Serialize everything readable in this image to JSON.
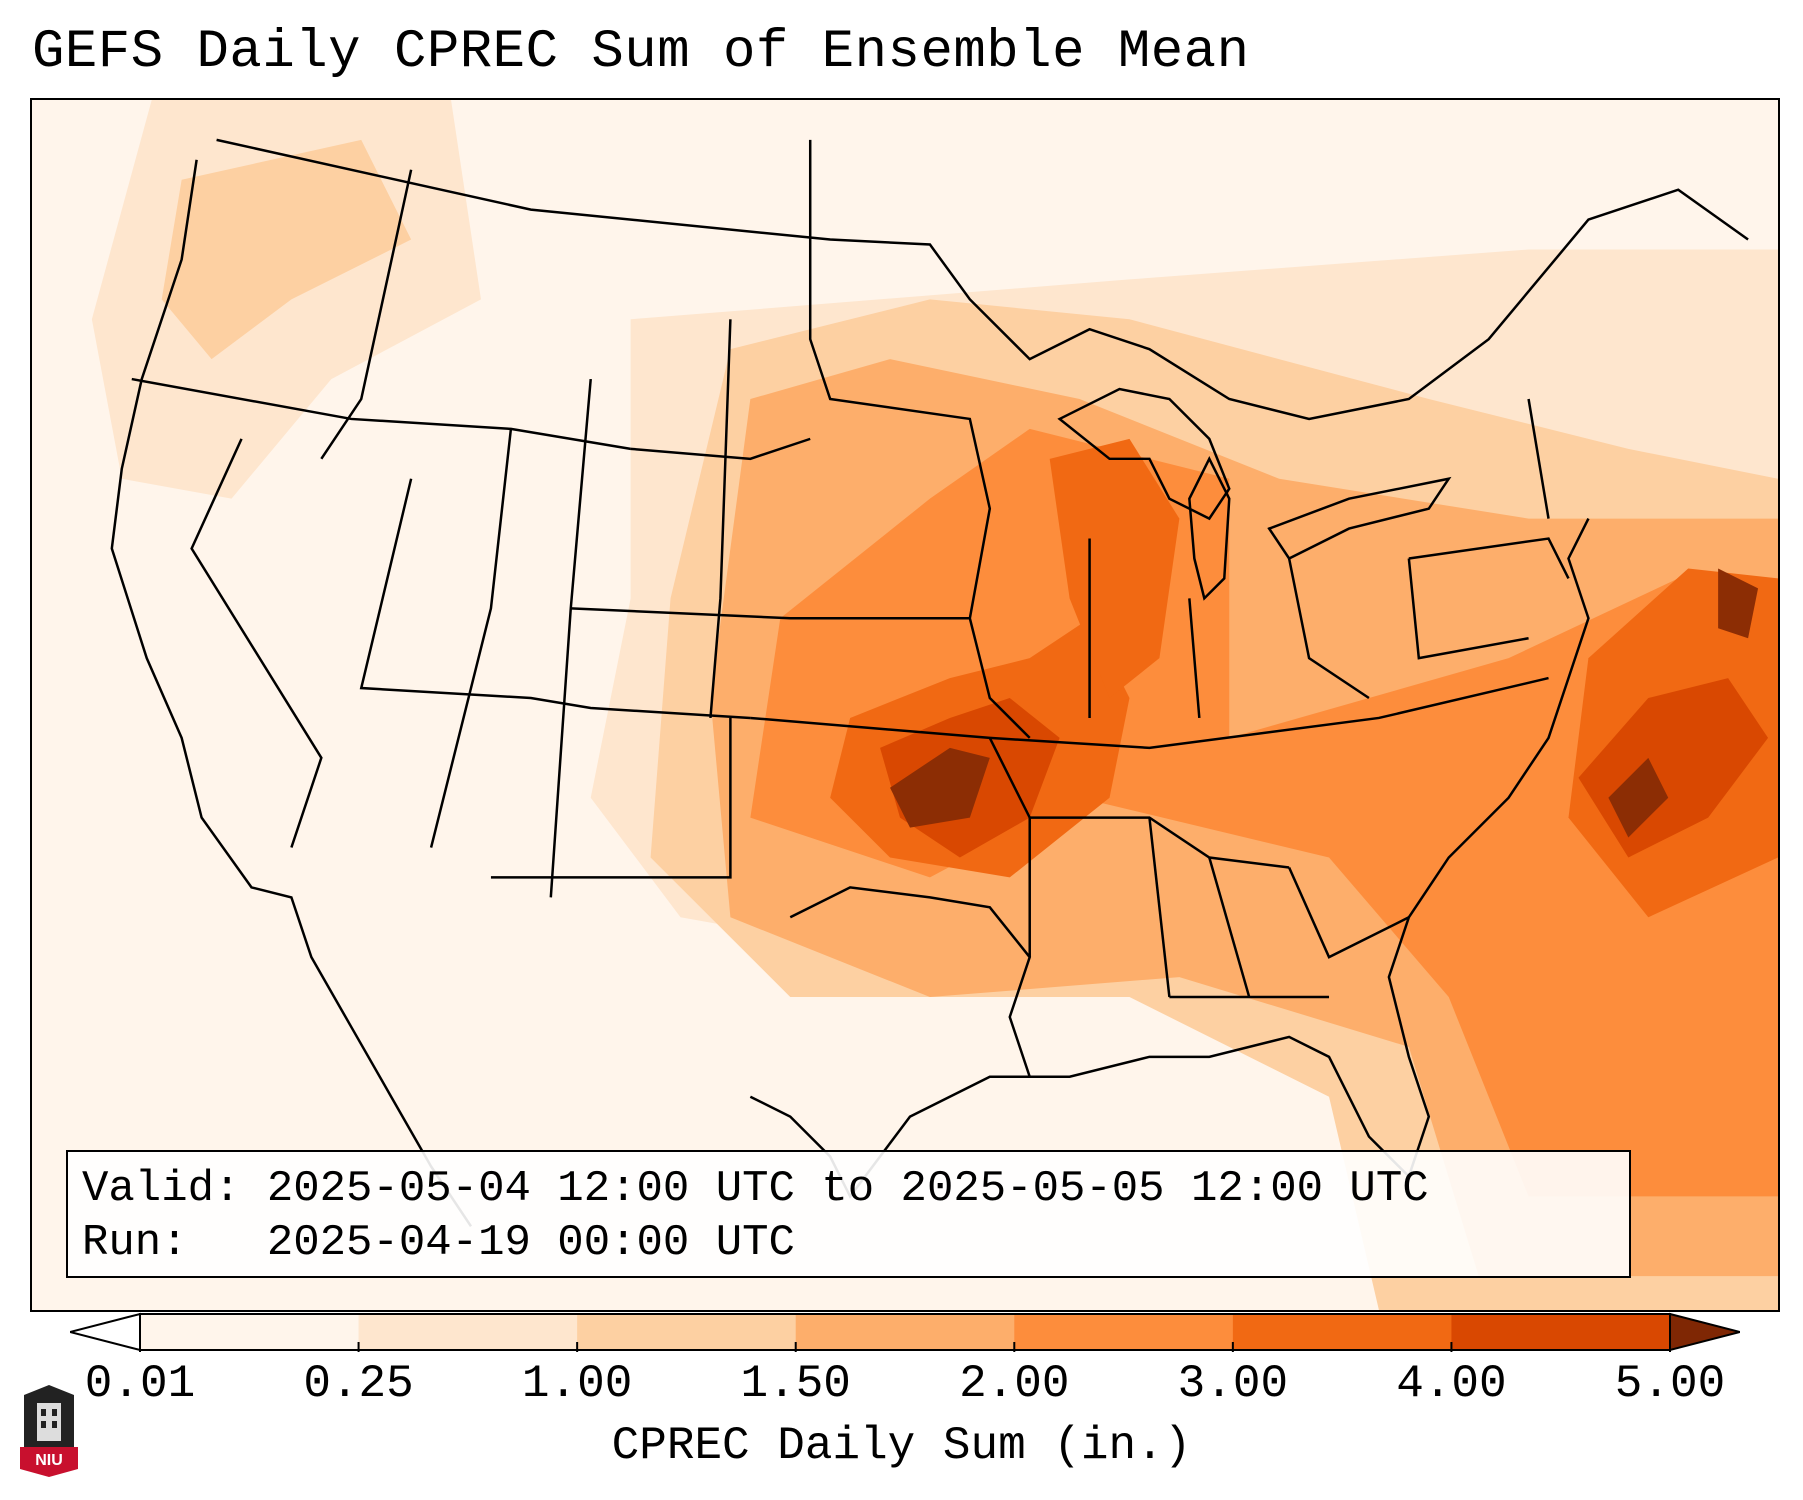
{
  "title": "GEFS Daily CPREC Sum of Ensemble Mean",
  "valid_box": {
    "valid_label": "Valid:",
    "valid_value": "2025-05-04 12:00 UTC to 2025-05-05 12:00 UTC",
    "run_label": "Run:",
    "run_value": "2025-04-19 00:00 UTC"
  },
  "colorbar": {
    "label": "CPREC Daily Sum (in.)",
    "ticks": [
      "0.01",
      "0.25",
      "1.00",
      "1.50",
      "2.00",
      "3.00",
      "4.00",
      "5.00"
    ],
    "colors": [
      "#fff5eb",
      "#fee6ce",
      "#fdd0a2",
      "#fdae6b",
      "#fd8d3c",
      "#f16913",
      "#d94801",
      "#8c2d04"
    ],
    "under_color": "#ffffff",
    "over_color": "#7f2704"
  },
  "logo": {
    "text": "NIU",
    "color": "#c8102e"
  },
  "precip_regions": [
    {
      "level": 0,
      "points": [
        [
          0,
          0
        ],
        [
          1750,
          0
        ],
        [
          1750,
          1214
        ],
        [
          0,
          1214
        ]
      ]
    },
    {
      "level": 1,
      "points": [
        [
          120,
          0
        ],
        [
          420,
          0
        ],
        [
          450,
          200
        ],
        [
          300,
          280
        ],
        [
          200,
          400
        ],
        [
          90,
          380
        ],
        [
          60,
          220
        ]
      ]
    },
    {
      "level": 1,
      "points": [
        [
          600,
          220
        ],
        [
          1100,
          180
        ],
        [
          1500,
          150
        ],
        [
          1750,
          150
        ],
        [
          1750,
          700
        ],
        [
          1400,
          900
        ],
        [
          1100,
          900
        ],
        [
          650,
          820
        ],
        [
          560,
          700
        ],
        [
          600,
          500
        ]
      ]
    },
    {
      "level": 2,
      "points": [
        [
          150,
          80
        ],
        [
          330,
          40
        ],
        [
          380,
          140
        ],
        [
          260,
          200
        ],
        [
          180,
          260
        ],
        [
          130,
          200
        ]
      ]
    },
    {
      "level": 2,
      "points": [
        [
          700,
          250
        ],
        [
          900,
          200
        ],
        [
          1100,
          220
        ],
        [
          1400,
          300
        ],
        [
          1600,
          350
        ],
        [
          1750,
          380
        ],
        [
          1750,
          1214
        ],
        [
          1350,
          1214
        ],
        [
          1300,
          1000
        ],
        [
          1100,
          900
        ],
        [
          760,
          900
        ],
        [
          620,
          760
        ],
        [
          640,
          500
        ]
      ]
    },
    {
      "level": 3,
      "points": [
        [
          720,
          300
        ],
        [
          860,
          260
        ],
        [
          1050,
          300
        ],
        [
          1250,
          380
        ],
        [
          1500,
          420
        ],
        [
          1750,
          420
        ],
        [
          1750,
          1180
        ],
        [
          1450,
          1180
        ],
        [
          1380,
          950
        ],
        [
          1150,
          880
        ],
        [
          900,
          900
        ],
        [
          700,
          820
        ],
        [
          680,
          600
        ]
      ]
    },
    {
      "level": 4,
      "points": [
        [
          750,
          520
        ],
        [
          900,
          400
        ],
        [
          1000,
          330
        ],
        [
          1200,
          380
        ],
        [
          1200,
          640
        ],
        [
          1480,
          560
        ],
        [
          1650,
          480
        ],
        [
          1750,
          500
        ],
        [
          1750,
          1100
        ],
        [
          1500,
          1100
        ],
        [
          1420,
          900
        ],
        [
          1300,
          760
        ],
        [
          1050,
          700
        ],
        [
          900,
          780
        ],
        [
          720,
          720
        ]
      ]
    },
    {
      "level": 5,
      "points": [
        [
          820,
          620
        ],
        [
          920,
          580
        ],
        [
          1000,
          560
        ],
        [
          1060,
          520
        ],
        [
          1100,
          600
        ],
        [
          1080,
          700
        ],
        [
          980,
          780
        ],
        [
          860,
          760
        ],
        [
          800,
          700
        ]
      ]
    },
    {
      "level": 5,
      "points": [
        [
          1020,
          360
        ],
        [
          1100,
          340
        ],
        [
          1150,
          420
        ],
        [
          1130,
          560
        ],
        [
          1080,
          600
        ],
        [
          1040,
          500
        ]
      ]
    },
    {
      "level": 5,
      "points": [
        [
          1560,
          560
        ],
        [
          1660,
          470
        ],
        [
          1750,
          480
        ],
        [
          1750,
          760
        ],
        [
          1620,
          820
        ],
        [
          1540,
          720
        ]
      ]
    },
    {
      "level": 6,
      "points": [
        [
          850,
          650
        ],
        [
          920,
          620
        ],
        [
          980,
          600
        ],
        [
          1030,
          640
        ],
        [
          1000,
          720
        ],
        [
          930,
          760
        ],
        [
          870,
          720
        ]
      ]
    },
    {
      "level": 6,
      "points": [
        [
          1550,
          680
        ],
        [
          1620,
          600
        ],
        [
          1700,
          580
        ],
        [
          1740,
          640
        ],
        [
          1680,
          720
        ],
        [
          1600,
          760
        ]
      ]
    },
    {
      "level": 7,
      "points": [
        [
          860,
          690
        ],
        [
          920,
          650
        ],
        [
          960,
          660
        ],
        [
          940,
          720
        ],
        [
          880,
          730
        ]
      ]
    },
    {
      "level": 7,
      "points": [
        [
          1690,
          470
        ],
        [
          1730,
          490
        ],
        [
          1720,
          540
        ],
        [
          1690,
          530
        ]
      ]
    },
    {
      "level": 7,
      "points": [
        [
          1580,
          700
        ],
        [
          1620,
          660
        ],
        [
          1640,
          700
        ],
        [
          1600,
          740
        ]
      ]
    }
  ]
}
